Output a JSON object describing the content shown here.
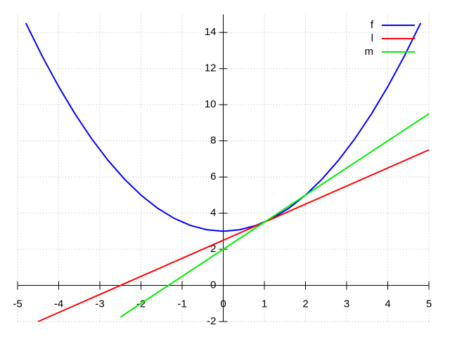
{
  "chart_data": {
    "type": "line",
    "xlim": [
      -5,
      5
    ],
    "ylim": [
      -2,
      15
    ],
    "xticks": [
      -5,
      -4,
      -3,
      -2,
      -1,
      0,
      1,
      2,
      3,
      4,
      5
    ],
    "yticks": [
      -2,
      0,
      2,
      4,
      6,
      8,
      10,
      12,
      14
    ],
    "grid": true,
    "legend": "top-right",
    "series": [
      {
        "name": "f",
        "color": "#0000ff",
        "x": [
          -4.8,
          -4.4,
          -4.0,
          -3.6,
          -3.2,
          -2.8,
          -2.4,
          -2.0,
          -1.6,
          -1.2,
          -0.8,
          -0.4,
          0,
          0.4,
          0.8,
          1.2,
          1.6,
          2.0,
          2.4,
          2.8,
          3.2,
          3.6,
          4.0,
          4.4,
          4.8
        ],
        "values": [
          14.52,
          12.68,
          11,
          9.48,
          8.12,
          6.92,
          5.88,
          5,
          4.28,
          3.72,
          3.32,
          3.08,
          3,
          3.08,
          3.32,
          3.72,
          4.28,
          5,
          5.88,
          6.92,
          8.12,
          9.48,
          11,
          12.68,
          14.52
        ]
      },
      {
        "name": "l",
        "color": "#ff0000",
        "x": [
          -4.5,
          5
        ],
        "values": [
          -2,
          7.5
        ]
      },
      {
        "name": "m",
        "color": "#00ee00",
        "x": [
          -2.5,
          5
        ],
        "values": [
          -1.75,
          9.5
        ]
      }
    ]
  }
}
